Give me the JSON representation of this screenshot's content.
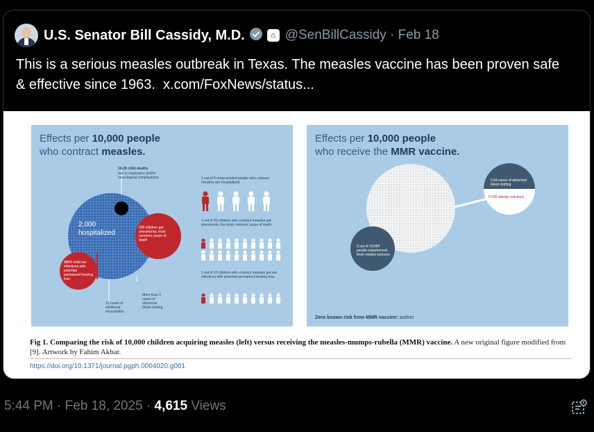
{
  "tweet": {
    "author_name": "U.S. Senator Bill Cassidy, M.D.",
    "handle": "@SenBillCassidy",
    "date_short": "Feb 18",
    "text": "This is a serious measles outbreak in Texas. The measles vaccine has been proven safe & effective since 1963.",
    "link": "x.com/FoxNews/status..."
  },
  "figure": {
    "left": {
      "title_pre": "Effects per ",
      "title_num": "10,000 people",
      "title_line2_pre": "who contract ",
      "title_line2_b": "measles.",
      "deaths_label": "10-30 child deaths",
      "deaths_sub": "due to respiratory and/or neurological complications",
      "hospitalized_num": "2,000",
      "hospitalized_label": "hospitalized",
      "pneumonia": "500 children get pneumonia; most common cause of death",
      "hearing": "MMR child ear infections with potential permanent hearing loss",
      "encephalitis": "10 cases of childhood encephalitis",
      "clotting": "More than 3 cases of abnormal blood clotting",
      "stat1": "1 out of 5 unvaccinated people who contract measles are hospitalized.",
      "stat2": "1 out of 20 children who contract measles get pneumonia, the most common cause of death.",
      "stat3": "1 out of 10 children who contract measles get ear infections with potential permanent hearing loss."
    },
    "right": {
      "title_pre": "Effects per ",
      "title_num": "10,000 people",
      "title_line2_pre": "who receive the ",
      "title_line2_b": "MMR vaccine.",
      "clotting": "0.04 cases of abnormal blood clotting",
      "allergic": "0.036 allergic reactions",
      "fever": "3 out of 10,000 people experienced fever related seizures",
      "zero_risk_b": "Zero known risk from MMR vaccine:",
      "zero_risk": " autism"
    },
    "caption_b": "Fig 1. Comparing the risk of 10,000 children acquiring measles (left) versus receiving the measles-mumps-rubella (MMR) vaccine.",
    "caption": " A new original figure modified from [9]. Artwork by Fahim Akbar.",
    "doi": "https://doi.org/10.1371/journal.pgph.0004020.g001"
  },
  "footer": {
    "time": "5:44 PM · Feb 18, 2025 · ",
    "views_num": "4,615",
    "views_label": " Views"
  },
  "colors": {
    "panel": "#a9cbe6",
    "red": "#c0272d",
    "blue": "#3d6fb5",
    "dark": "#2f4a5f"
  }
}
